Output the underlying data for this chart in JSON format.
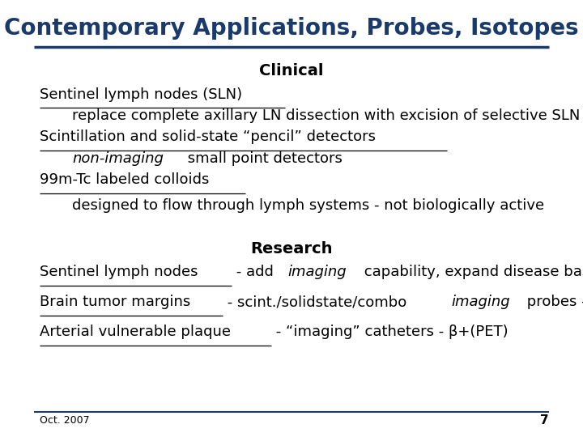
{
  "title": "Contemporary Applications, Probes, Isotopes",
  "title_color": "#1a3a6b",
  "title_fontsize": 20,
  "bg_color": "#ffffff",
  "line_color": "#1a3a6b",
  "text_color": "#000000",
  "footer_text": "Oct. 2007",
  "page_number": "7"
}
